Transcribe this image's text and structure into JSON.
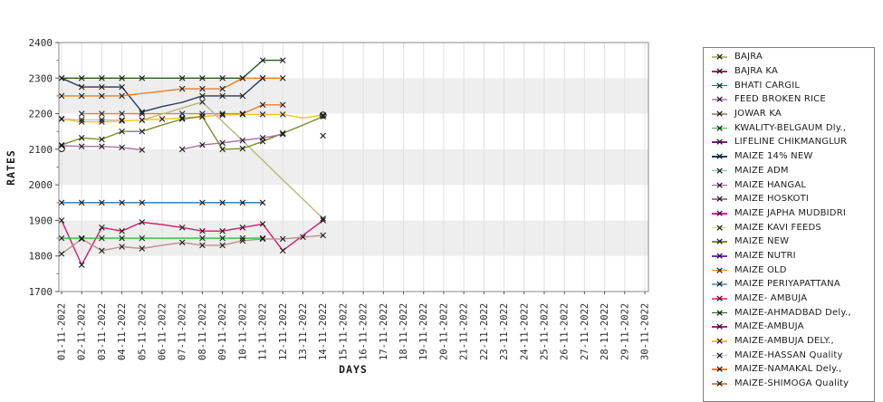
{
  "chart_data": {
    "type": "line",
    "title": "",
    "xlabel": "DAYS",
    "ylabel": "RATES",
    "ylim": [
      1700,
      2400
    ],
    "y_ticks": [
      1700,
      1800,
      1900,
      2000,
      2100,
      2200,
      2300,
      2400
    ],
    "shaded_bands": [
      [
        1800,
        1900
      ],
      [
        2000,
        2100
      ],
      [
        2200,
        2300
      ]
    ],
    "grid": "vertical",
    "legend_position": "right-outside",
    "x": [
      "01-11-2022",
      "02-11-2022",
      "03-11-2022",
      "04-11-2022",
      "05-11-2022",
      "06-11-2022",
      "07-11-2022",
      "08-11-2022",
      "09-11-2022",
      "10-11-2022",
      "11-11-2022",
      "12-11-2022",
      "13-11-2022",
      "14-11-2022",
      "15-11-2022",
      "16-11-2022",
      "17-11-2022",
      "18-11-2022",
      "19-11-2022",
      "20-11-2022",
      "21-11-2022",
      "22-11-2022",
      "23-11-2022",
      "24-11-2022",
      "25-11-2022",
      "26-11-2022",
      "27-11-2022",
      "28-11-2022",
      "29-11-2022",
      "30-11-2022"
    ],
    "marker": "x",
    "legend": [
      {
        "label": "BAJRA",
        "color": "#b8b878"
      },
      {
        "label": "BAJRA KA",
        "color": "#a8246d"
      },
      {
        "label": "BHATI CARGIL",
        "color": "#d21b6e"
      },
      {
        "label": "FEED BROKEN RICE",
        "color": "#b49cd8"
      },
      {
        "label": "JOWAR KA",
        "color": "#bc8f8f"
      },
      {
        "label": "KWALITY-BELGAUM Dly.,",
        "color": "#2eb852"
      },
      {
        "label": "LIFELINE CHIKMANGLUR",
        "color": "#6e2277"
      },
      {
        "label": "MAIZE 14% NEW",
        "color": "#27395f"
      },
      {
        "label": "MAIZE ADM",
        "color": "#6fc7b2"
      },
      {
        "label": "MAIZE HANGAL",
        "color": "#bb4f8e"
      },
      {
        "label": "MAIZE HOSKOTI",
        "color": "#a8719d"
      },
      {
        "label": "MAIZE JAPHA MUDBIDRI",
        "color": "#e3189e"
      },
      {
        "label": "MAIZE KAVI FEEDS",
        "color": "#dce070"
      },
      {
        "label": "MAIZE NEW",
        "color": "#7e8c28"
      },
      {
        "label": "MAIZE NUTRI",
        "color": "#7a2ebe"
      },
      {
        "label": "MAIZE OLD",
        "color": "#ef7d17"
      },
      {
        "label": "MAIZE PERIYAPATTANA",
        "color": "#70a8d8"
      },
      {
        "label": "MAIZE- AMBUJA",
        "color": "#f04f8b"
      },
      {
        "label": "MAIZE-AHMADBAD Dely.,",
        "color": "#2c581f"
      },
      {
        "label": "MAIZE-AMBUJA",
        "color": "#b01ab0"
      },
      {
        "label": "MAIZE-AMBUJA DELY.,",
        "color": "#eec41b"
      },
      {
        "label": "MAIZE-HASSAN Quality",
        "color": "#c3c2e6"
      },
      {
        "label": "MAIZE-NAMAKAL Dely.,",
        "color": "#ea7d31"
      },
      {
        "label": "MAIZE-SHIMOGA Quality",
        "color": "#d78a3a"
      }
    ],
    "series": [
      {
        "name": "MAIZE-AHMADBAD Dely.,",
        "points": [
          [
            1,
            2300
          ],
          [
            2,
            2300
          ],
          [
            3,
            2300
          ],
          [
            4,
            2300
          ],
          [
            5,
            2300
          ],
          [
            6,
            2300
          ],
          [
            7,
            2300
          ],
          [
            8,
            2300
          ],
          [
            9,
            2300
          ],
          [
            10,
            2300
          ],
          [
            11,
            2350
          ],
          [
            12,
            2350
          ]
        ],
        "nomark": [
          6
        ]
      },
      {
        "name": "MAIZE 14% NEW",
        "points": [
          [
            1,
            2300
          ],
          [
            2,
            2275
          ],
          [
            3,
            2275
          ],
          [
            4,
            2275
          ],
          [
            5,
            2205
          ],
          [
            6,
            2220
          ],
          [
            7,
            2232
          ],
          [
            8,
            2250
          ],
          [
            9,
            2250
          ],
          [
            10,
            2250
          ],
          [
            11,
            2300
          ]
        ],
        "nomark": [
          6,
          7
        ]
      },
      {
        "name": "MAIZE OLD",
        "points": [
          [
            1,
            2250
          ],
          [
            2,
            2250
          ],
          [
            3,
            2250
          ],
          [
            4,
            2250
          ],
          [
            5,
            2257
          ],
          [
            6,
            2263
          ],
          [
            7,
            2270
          ],
          [
            8,
            2270
          ],
          [
            9,
            2270
          ],
          [
            10,
            2300
          ],
          [
            11,
            2300
          ],
          [
            12,
            2300
          ]
        ],
        "nomark": [
          5,
          6
        ]
      },
      {
        "name": "MAIZE-NAMAKAL Dely.,",
        "points": [
          [
            2,
            2200
          ],
          [
            3,
            2200
          ],
          [
            4,
            2200
          ],
          [
            5,
            2200
          ],
          [
            6,
            2200
          ],
          [
            7,
            2200
          ],
          [
            8,
            2200
          ],
          [
            9,
            2200
          ],
          [
            10,
            2200
          ],
          [
            11,
            2225
          ],
          [
            12,
            2225
          ]
        ],
        "nomark": [
          6
        ]
      },
      {
        "name": "MAIZE-AMBUJA DELY.,",
        "points": [
          [
            1,
            2185
          ],
          [
            2,
            2177
          ],
          [
            3,
            2177
          ],
          [
            4,
            2180
          ],
          [
            5,
            2182
          ],
          [
            6,
            2185
          ],
          [
            7,
            2188
          ],
          [
            8,
            2192
          ],
          [
            9,
            2196
          ],
          [
            10,
            2198
          ],
          [
            11,
            2198
          ],
          [
            12,
            2198
          ],
          [
            13,
            2188
          ],
          [
            14,
            2196
          ]
        ],
        "nomark": [
          13
        ]
      },
      {
        "name": "MAIZE-HASSAN Quality",
        "points": [
          [
            1,
            2186
          ],
          [
            2,
            2183
          ],
          [
            3,
            2183
          ],
          [
            4,
            2182
          ]
        ],
        "nomark": []
      },
      {
        "name": "BAJRA",
        "points": [
          [
            5,
            2182
          ],
          [
            6,
            2199
          ],
          [
            7,
            2216
          ],
          [
            8,
            2233
          ],
          [
            9,
            2178
          ],
          [
            10,
            2124
          ],
          [
            11,
            2069
          ],
          [
            12,
            2014
          ],
          [
            13,
            1960
          ],
          [
            14,
            1905
          ]
        ],
        "nomark": [
          6,
          7,
          9,
          10,
          11,
          12,
          13
        ]
      },
      {
        "name": "MAIZE NEW",
        "points": [
          [
            1,
            2112
          ],
          [
            2,
            2132
          ],
          [
            3,
            2128
          ],
          [
            4,
            2150
          ],
          [
            5,
            2150
          ],
          [
            6,
            2168
          ],
          [
            7,
            2185
          ],
          [
            8,
            2192
          ],
          [
            9,
            2100
          ],
          [
            10,
            2102
          ],
          [
            11,
            2122
          ],
          [
            12,
            2145
          ],
          [
            13,
            2168
          ],
          [
            14,
            2192
          ]
        ],
        "nomark": [
          6,
          13
        ]
      },
      {
        "name": "MAIZE HOSKOTI",
        "points": [
          [
            1,
            2110
          ],
          [
            2,
            2108
          ],
          [
            3,
            2108
          ],
          [
            4,
            2105
          ],
          [
            5,
            2098
          ],
          [
            7,
            2100
          ],
          [
            8,
            2112
          ],
          [
            9,
            2118
          ],
          [
            10,
            2125
          ],
          [
            11,
            2132
          ],
          [
            12,
            2142
          ],
          [
            14,
            2138
          ]
        ],
        "nomark": []
      },
      {
        "name": "MAIZE PERIYAPATTANA",
        "color_override": "#2273b6",
        "points": [
          [
            1,
            1950
          ],
          [
            2,
            1950
          ],
          [
            3,
            1950
          ],
          [
            4,
            1950
          ],
          [
            5,
            1950
          ],
          [
            6,
            1950
          ],
          [
            7,
            1950
          ],
          [
            8,
            1950
          ],
          [
            9,
            1950
          ],
          [
            10,
            1950
          ],
          [
            11,
            1950
          ]
        ],
        "nomark": [
          6,
          7
        ]
      },
      {
        "name": "BHATI CARGIL",
        "points": [
          [
            1,
            1900
          ],
          [
            2,
            1775
          ],
          [
            3,
            1880
          ],
          [
            4,
            1870
          ],
          [
            5,
            1895
          ],
          [
            6,
            1888
          ],
          [
            7,
            1880
          ],
          [
            8,
            1870
          ],
          [
            9,
            1870
          ],
          [
            10,
            1880
          ],
          [
            11,
            1890
          ],
          [
            12,
            1815
          ],
          [
            13,
            1858
          ],
          [
            14,
            1900
          ]
        ],
        "nomark": [
          6,
          13
        ]
      },
      {
        "name": "KWALITY-BELGAUM Dly.,",
        "color_override": "#1ec437",
        "points": [
          [
            1,
            1850
          ],
          [
            2,
            1850
          ],
          [
            3,
            1850
          ],
          [
            4,
            1850
          ],
          [
            5,
            1850
          ],
          [
            6,
            1850
          ],
          [
            7,
            1850
          ],
          [
            8,
            1850
          ],
          [
            9,
            1850
          ],
          [
            10,
            1850
          ],
          [
            11,
            1850
          ]
        ],
        "nomark": [
          6,
          7
        ]
      },
      {
        "name": "JOWAR KA",
        "points": [
          [
            1,
            1806
          ],
          [
            2,
            1848
          ],
          [
            3,
            1815
          ],
          [
            4,
            1826
          ],
          [
            5,
            1821
          ],
          [
            6,
            1830
          ],
          [
            7,
            1838
          ],
          [
            8,
            1830
          ],
          [
            9,
            1830
          ],
          [
            10,
            1843
          ],
          [
            11,
            1848
          ],
          [
            12,
            1848
          ],
          [
            13,
            1853
          ],
          [
            14,
            1858
          ]
        ],
        "nomark": [
          6
        ]
      }
    ],
    "extra_circle_markers": [
      {
        "date": "01-11-2022",
        "value": 2102
      },
      {
        "date": "14-11-2022",
        "value": 2196
      }
    ]
  },
  "layout_note": "line chart of commodity rates, 01-11-2022 to 30-11-2022, data visible through 14-11-2022"
}
